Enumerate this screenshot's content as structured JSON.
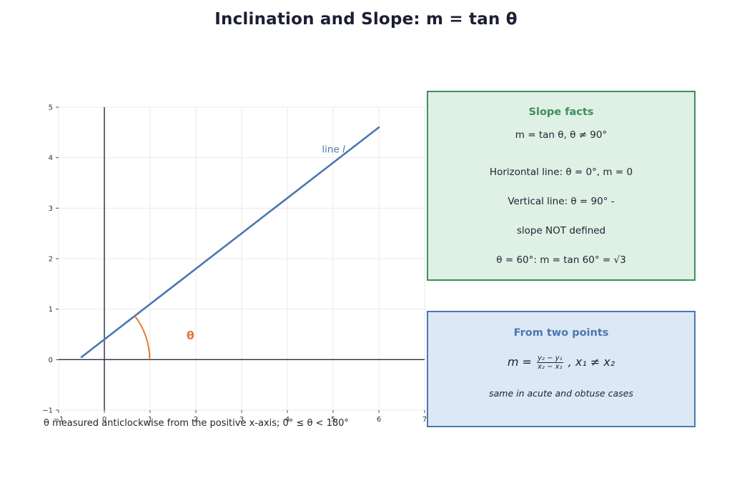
{
  "page": {
    "title": "Inclination and Slope:  m = tan θ"
  },
  "chart_data": {
    "type": "line",
    "xlim": [
      -1,
      7
    ],
    "ylim": [
      -1,
      5
    ],
    "xticks": [
      -1,
      0,
      1,
      2,
      3,
      4,
      5,
      6,
      7
    ],
    "yticks": [
      -1,
      0,
      1,
      2,
      3,
      4,
      5
    ],
    "grid": true,
    "series": [
      {
        "name": "line l",
        "x": [
          -0.5,
          6.0
        ],
        "y": [
          0.05,
          4.6
        ],
        "color": "#4a78b0"
      }
    ],
    "angle": {
      "label": "θ",
      "vertex": [
        0,
        0
      ],
      "color": "#e07b39"
    },
    "annotations": [
      {
        "text": "line ",
        "italic_part": "l",
        "x": 4.6,
        "y": 4.2
      }
    ]
  },
  "caption": {
    "text": "θ measured anticlockwise from the positive x-axis; 0° ≤ θ < 180°"
  },
  "facts_box": {
    "title": "Slope facts",
    "lines": [
      "m = tan θ,  θ ≠ 90°",
      "Horizontal line: θ = 0°, m = 0",
      "Vertical line: θ = 90° -",
      "slope NOT defined",
      "θ = 60°: m = tan 60° = √3"
    ],
    "border_color": "#3e8f5b",
    "fill_color": "#dff0e5"
  },
  "points_box": {
    "title": "From two points",
    "formula_lhs": "m = ",
    "formula_num": "y₂ − y₁",
    "formula_den": "x₂ − x₁",
    "formula_rhs": ",  x₁ ≠ x₂",
    "note": "same in acute and obtuse cases",
    "border_color": "#4a78b0",
    "fill_color": "#dde8f5"
  }
}
